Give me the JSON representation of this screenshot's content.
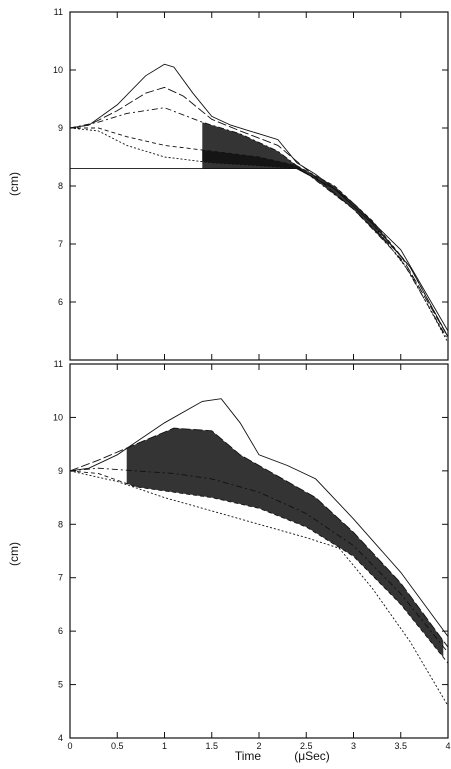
{
  "figure": {
    "x_title_time": "Time",
    "x_title_unit": "(μSec)"
  },
  "chart_data": [
    {
      "type": "line",
      "title": "",
      "xlabel": "Time (μSec)",
      "ylabel": "(cm)",
      "xlim": [
        0,
        4
      ],
      "ylim": [
        5,
        11
      ],
      "x_ticks": [
        "0",
        "0.5",
        "1",
        "1.5",
        "2",
        "2.5",
        "3",
        "3.5",
        "4"
      ],
      "x_tick_labels_shown": false,
      "y_ticks": [
        "11",
        "10",
        "9",
        "8",
        "7",
        "6"
      ],
      "grid": false,
      "legend": "none",
      "note": "",
      "series": [
        {
          "x": [
            0,
            0.2,
            0.5,
            0.8,
            1.0,
            1.1,
            1.3,
            1.5,
            1.7,
            1.9,
            2.2,
            2.4,
            2.6,
            3.0,
            3.5,
            4.0
          ],
          "y": [
            9.0,
            9.05,
            9.4,
            9.9,
            10.1,
            10.05,
            9.6,
            9.2,
            9.05,
            8.95,
            8.8,
            8.4,
            8.2,
            7.7,
            6.9,
            5.5
          ]
        },
        {
          "x": [
            0,
            0.2,
            0.5,
            0.8,
            1.0,
            1.2,
            1.5,
            1.8,
            2.2,
            2.6,
            3.0,
            3.5,
            4.0
          ],
          "y": [
            9.0,
            9.05,
            9.3,
            9.6,
            9.7,
            9.55,
            9.15,
            8.95,
            8.7,
            8.15,
            7.6,
            6.8,
            5.4
          ]
        },
        {
          "x": [
            0,
            0.3,
            0.6,
            1.0,
            1.4,
            1.8,
            2.2,
            2.6,
            3.0,
            3.5,
            4.0
          ],
          "y": [
            9.0,
            9.1,
            9.25,
            9.35,
            9.1,
            8.9,
            8.6,
            8.1,
            7.6,
            6.75,
            5.35
          ]
        },
        {
          "x": [
            0,
            0.3,
            0.6,
            1.0,
            1.5,
            2.0,
            2.4,
            2.8,
            3.2,
            3.6,
            4.0
          ],
          "y": [
            9.0,
            9.0,
            8.85,
            8.7,
            8.6,
            8.5,
            8.35,
            8.0,
            7.4,
            6.6,
            5.4
          ]
        },
        {
          "x": [
            0,
            0.3,
            0.6,
            1.0,
            1.5,
            2.0,
            2.4,
            2.8,
            3.2,
            3.6,
            4.0
          ],
          "y": [
            9.0,
            8.95,
            8.7,
            8.5,
            8.4,
            8.35,
            8.3,
            7.95,
            7.35,
            6.5,
            5.3
          ]
        },
        {
          "x": [
            0,
            1.0,
            2.0,
            2.4,
            2.8,
            3.2,
            3.6,
            4.0
          ],
          "y": [
            8.3,
            8.3,
            8.3,
            8.3,
            7.95,
            7.35,
            6.6,
            5.4
          ]
        }
      ]
    },
    {
      "type": "line",
      "title": "",
      "xlabel": "Time (μSec)",
      "ylabel": "(cm)",
      "xlim": [
        0,
        4
      ],
      "ylim": [
        4,
        11
      ],
      "x_ticks": [
        "0",
        "0.5",
        "1",
        "1.5",
        "2",
        "2.5",
        "3",
        "3.5",
        "4"
      ],
      "y_ticks": [
        "11",
        "10",
        "9",
        "8",
        "7",
        "6",
        "5",
        "4"
      ],
      "grid": false,
      "legend": "none",
      "note": "",
      "series": [
        {
          "x": [
            0,
            0.2,
            0.5,
            1.0,
            1.4,
            1.6,
            1.8,
            2.0,
            2.3,
            2.6,
            3.0,
            3.5,
            4.0
          ],
          "y": [
            9.0,
            9.05,
            9.3,
            9.9,
            10.3,
            10.35,
            9.9,
            9.3,
            9.1,
            8.85,
            8.1,
            7.1,
            5.9
          ]
        },
        {
          "x": [
            0,
            0.3,
            0.7,
            1.1,
            1.5,
            1.8,
            2.2,
            2.6,
            3.0,
            3.5,
            4.0
          ],
          "y": [
            9.0,
            9.2,
            9.5,
            9.8,
            9.75,
            9.3,
            8.9,
            8.5,
            7.85,
            6.9,
            5.7
          ]
        },
        {
          "x": [
            0,
            0.3,
            0.7,
            1.1,
            1.5,
            2.0,
            2.5,
            3.0,
            3.5,
            4.0
          ],
          "y": [
            9.0,
            9.05,
            9.0,
            8.95,
            8.85,
            8.6,
            8.2,
            7.6,
            6.7,
            5.6
          ]
        },
        {
          "x": [
            0,
            0.3,
            0.7,
            1.1,
            1.5,
            2.0,
            2.5,
            3.0,
            3.5,
            4.0
          ],
          "y": [
            9.0,
            8.95,
            8.7,
            8.6,
            8.5,
            8.3,
            7.95,
            7.4,
            6.5,
            5.4
          ]
        },
        {
          "x": [
            0,
            0.5,
            1.0,
            1.5,
            2.0,
            2.5,
            2.85,
            3.2,
            3.6,
            4.0
          ],
          "y": [
            9.0,
            8.8,
            8.5,
            8.25,
            8.0,
            7.75,
            7.55,
            6.8,
            5.8,
            4.6
          ]
        }
      ]
    }
  ]
}
